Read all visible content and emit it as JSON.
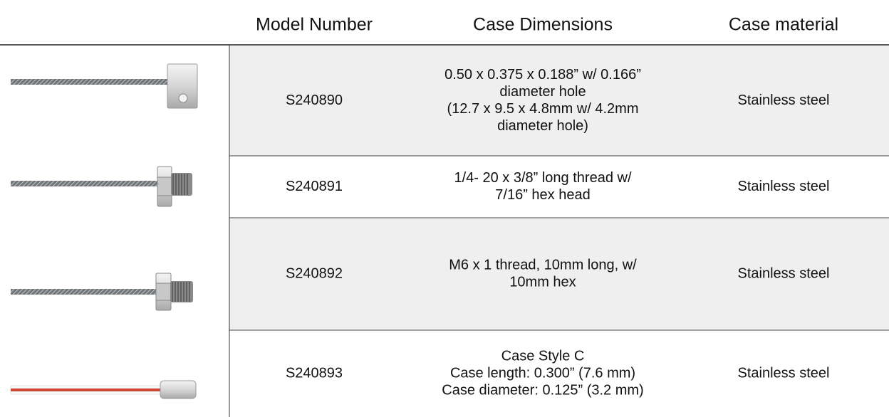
{
  "table": {
    "header": [
      "Model Number",
      "Case Dimensions",
      "Case material"
    ],
    "rows": [
      {
        "model": "S240890",
        "dimensions": [
          "0.50 x 0.375 x 0.188” w/ 0.166”",
          "diameter hole",
          "(12.7 x 9.5 x 4.8mm w/ 4.2mm",
          "diameter hole)"
        ],
        "material": "Stainless steel"
      },
      {
        "model": "S240891",
        "dimensions": [
          "1/4- 20 x 3/8” long thread w/",
          "7/16” hex head"
        ],
        "material": "Stainless steel"
      },
      {
        "model": "S240892",
        "dimensions": [
          "M6 x 1 thread, 10mm long, w/",
          "10mm hex"
        ],
        "material": "Stainless steel"
      },
      {
        "model": "S240893",
        "dimensions": [
          "Case Style C",
          "Case length: 0.300” (7.6 mm)",
          "Case diameter:  0.125” (3.2 mm)"
        ],
        "material": "Stainless steel"
      }
    ]
  }
}
